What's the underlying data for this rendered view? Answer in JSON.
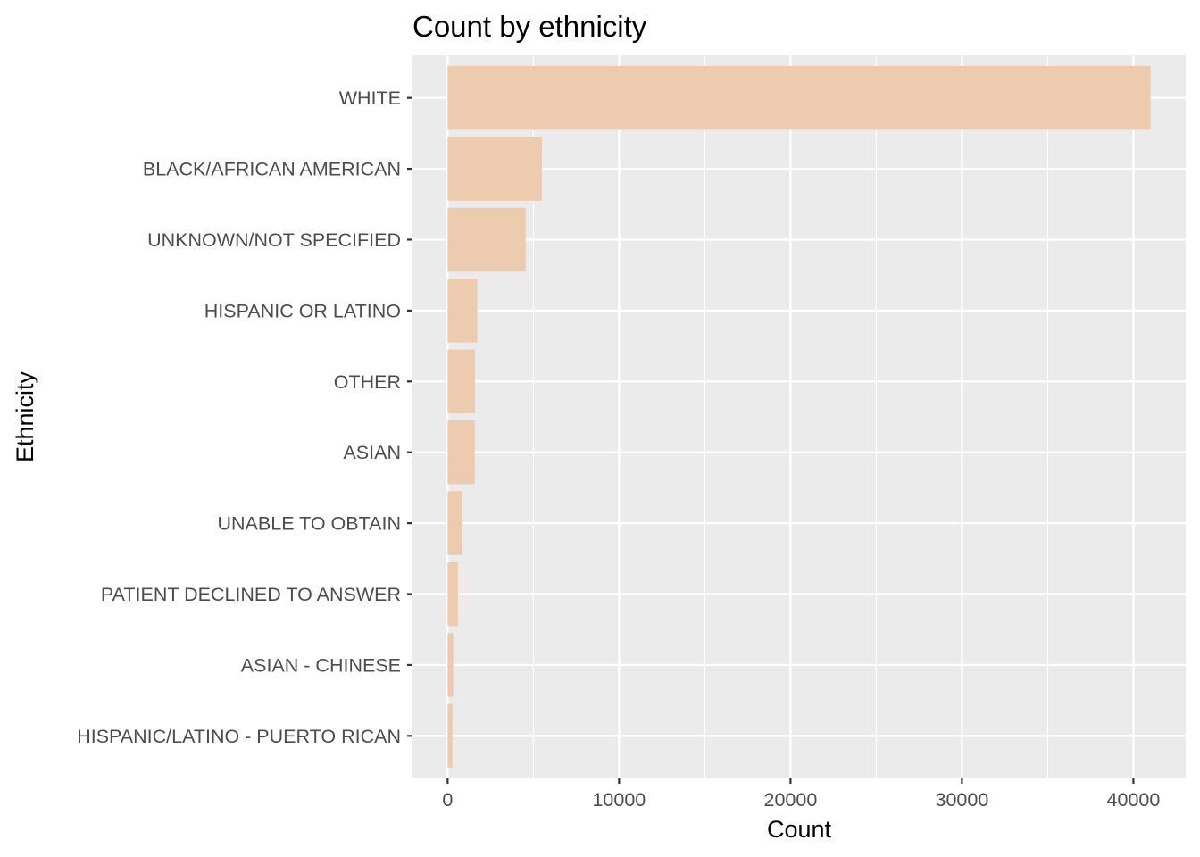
{
  "chart_data": {
    "type": "bar",
    "orientation": "horizontal",
    "title": "Count by ethnicity",
    "xlabel": "Count",
    "ylabel": "Ethnicity",
    "categories": [
      "WHITE",
      "BLACK/AFRICAN AMERICAN",
      "UNKNOWN/NOT SPECIFIED",
      "HISPANIC OR LATINO",
      "OTHER",
      "ASIAN",
      "UNABLE TO OBTAIN",
      "PATIENT DECLINED TO ANSWER",
      "ASIAN - CHINESE",
      "HISPANIC/LATINO - PUERTO RICAN"
    ],
    "values": [
      41000,
      5500,
      4550,
      1730,
      1600,
      1580,
      850,
      600,
      330,
      280
    ],
    "xlim": [
      -2050,
      43050
    ],
    "xticks": [
      0,
      10000,
      20000,
      30000,
      40000
    ],
    "grid": true,
    "colors": {
      "bar": "#ECCBAE",
      "panel": "#EBEBEB",
      "grid": "#FFFFFF"
    }
  }
}
